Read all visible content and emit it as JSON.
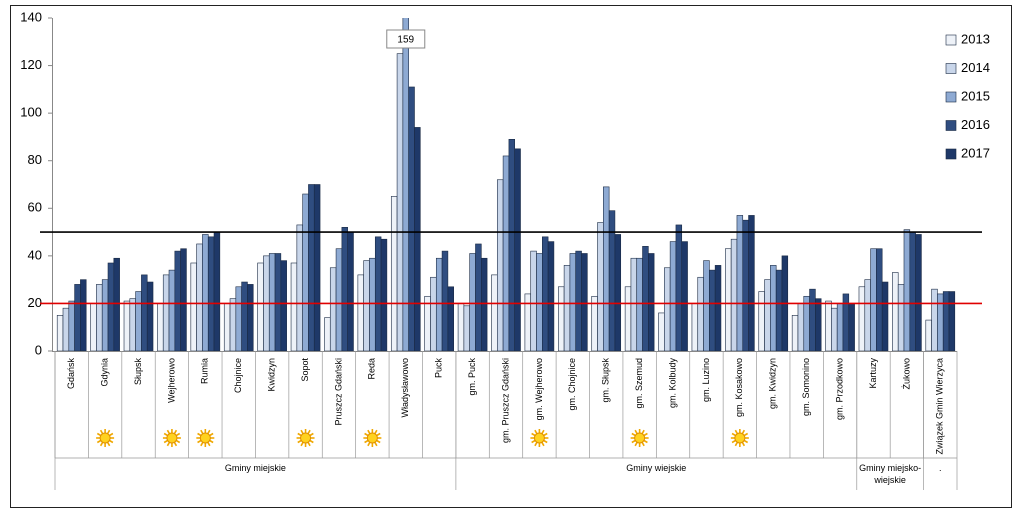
{
  "chart_data": {
    "type": "bar",
    "categories": [
      "Gdańsk",
      "Gdynia",
      "Słupsk",
      "Wejherowo",
      "Rumia",
      "Chojnice",
      "Kwidzyn",
      "Sopot",
      "Pruszcz Gdański",
      "Reda",
      "Władysławowo",
      "Puck",
      "gm. Puck",
      "gm. Pruszcz Gdański",
      "gm. Wejherowo",
      "gm. Chojnice",
      "gm. Słupsk",
      "gm. Szemud",
      "gm. Kolbudy",
      "gm. Luzino",
      "gm. Kosakowo",
      "gm. Kwidzyn",
      "gm. Somonino",
      "gm. Przodkowo",
      "Kartuzy",
      "Żukowo",
      "Związek Gmin Wierzyca"
    ],
    "series": [
      {
        "name": "2013",
        "color": "#eef2f8",
        "values": [
          15,
          20,
          21,
          20,
          37,
          20,
          37,
          37,
          14,
          32,
          65,
          23,
          20,
          32,
          24,
          27,
          23,
          27,
          16,
          20,
          43,
          25,
          15,
          21,
          27,
          33,
          13
        ]
      },
      {
        "name": "2014",
        "color": "#c9d6ea",
        "values": [
          18,
          28,
          22,
          32,
          45,
          22,
          40,
          53,
          35,
          38,
          125,
          31,
          19,
          72,
          42,
          36,
          54,
          39,
          35,
          31,
          47,
          30,
          20,
          18,
          30,
          28,
          26
        ]
      },
      {
        "name": "2015",
        "color": "#8eaad3",
        "values": [
          21,
          30,
          25,
          34,
          49,
          27,
          41,
          66,
          43,
          39,
          159,
          39,
          41,
          82,
          41,
          41,
          69,
          39,
          46,
          38,
          57,
          36,
          23,
          20,
          43,
          51,
          24
        ],
        "value_labels": [
          null,
          null,
          null,
          null,
          null,
          null,
          null,
          null,
          null,
          null,
          "159",
          null,
          null,
          null,
          null,
          null,
          null,
          null,
          null,
          null,
          null,
          null,
          null,
          null,
          null,
          null,
          null
        ]
      },
      {
        "name": "2016",
        "color": "#2f4d80",
        "values": [
          28,
          37,
          32,
          42,
          48,
          29,
          41,
          70,
          52,
          48,
          111,
          42,
          45,
          89,
          48,
          42,
          59,
          44,
          53,
          34,
          55,
          34,
          26,
          24,
          43,
          50,
          25
        ]
      },
      {
        "name": "2017",
        "color": "#1e3868",
        "values": [
          30,
          39,
          29,
          43,
          50,
          28,
          38,
          70,
          50,
          47,
          94,
          27,
          39,
          85,
          46,
          41,
          49,
          41,
          46,
          36,
          57,
          40,
          22,
          20,
          29,
          49,
          25
        ]
      }
    ],
    "ylim": [
      0,
      140
    ],
    "yticks": [
      0,
      20,
      40,
      60,
      80,
      100,
      120,
      140
    ],
    "reference_lines": [
      {
        "value": 50,
        "color": "#000000"
      },
      {
        "value": 20,
        "color": "#e00000"
      }
    ],
    "sun_icons": [
      1,
      3,
      4,
      7,
      9,
      14,
      17,
      20
    ],
    "groups": [
      {
        "name": "Gminy miejskie",
        "count": 12
      },
      {
        "name": "Gminy wiejskie",
        "count": 12
      },
      {
        "name": "Gminy miejsko-wiejskie",
        "count": 2
      },
      {
        "name": ".",
        "count": 1
      }
    ],
    "legend": "right"
  }
}
